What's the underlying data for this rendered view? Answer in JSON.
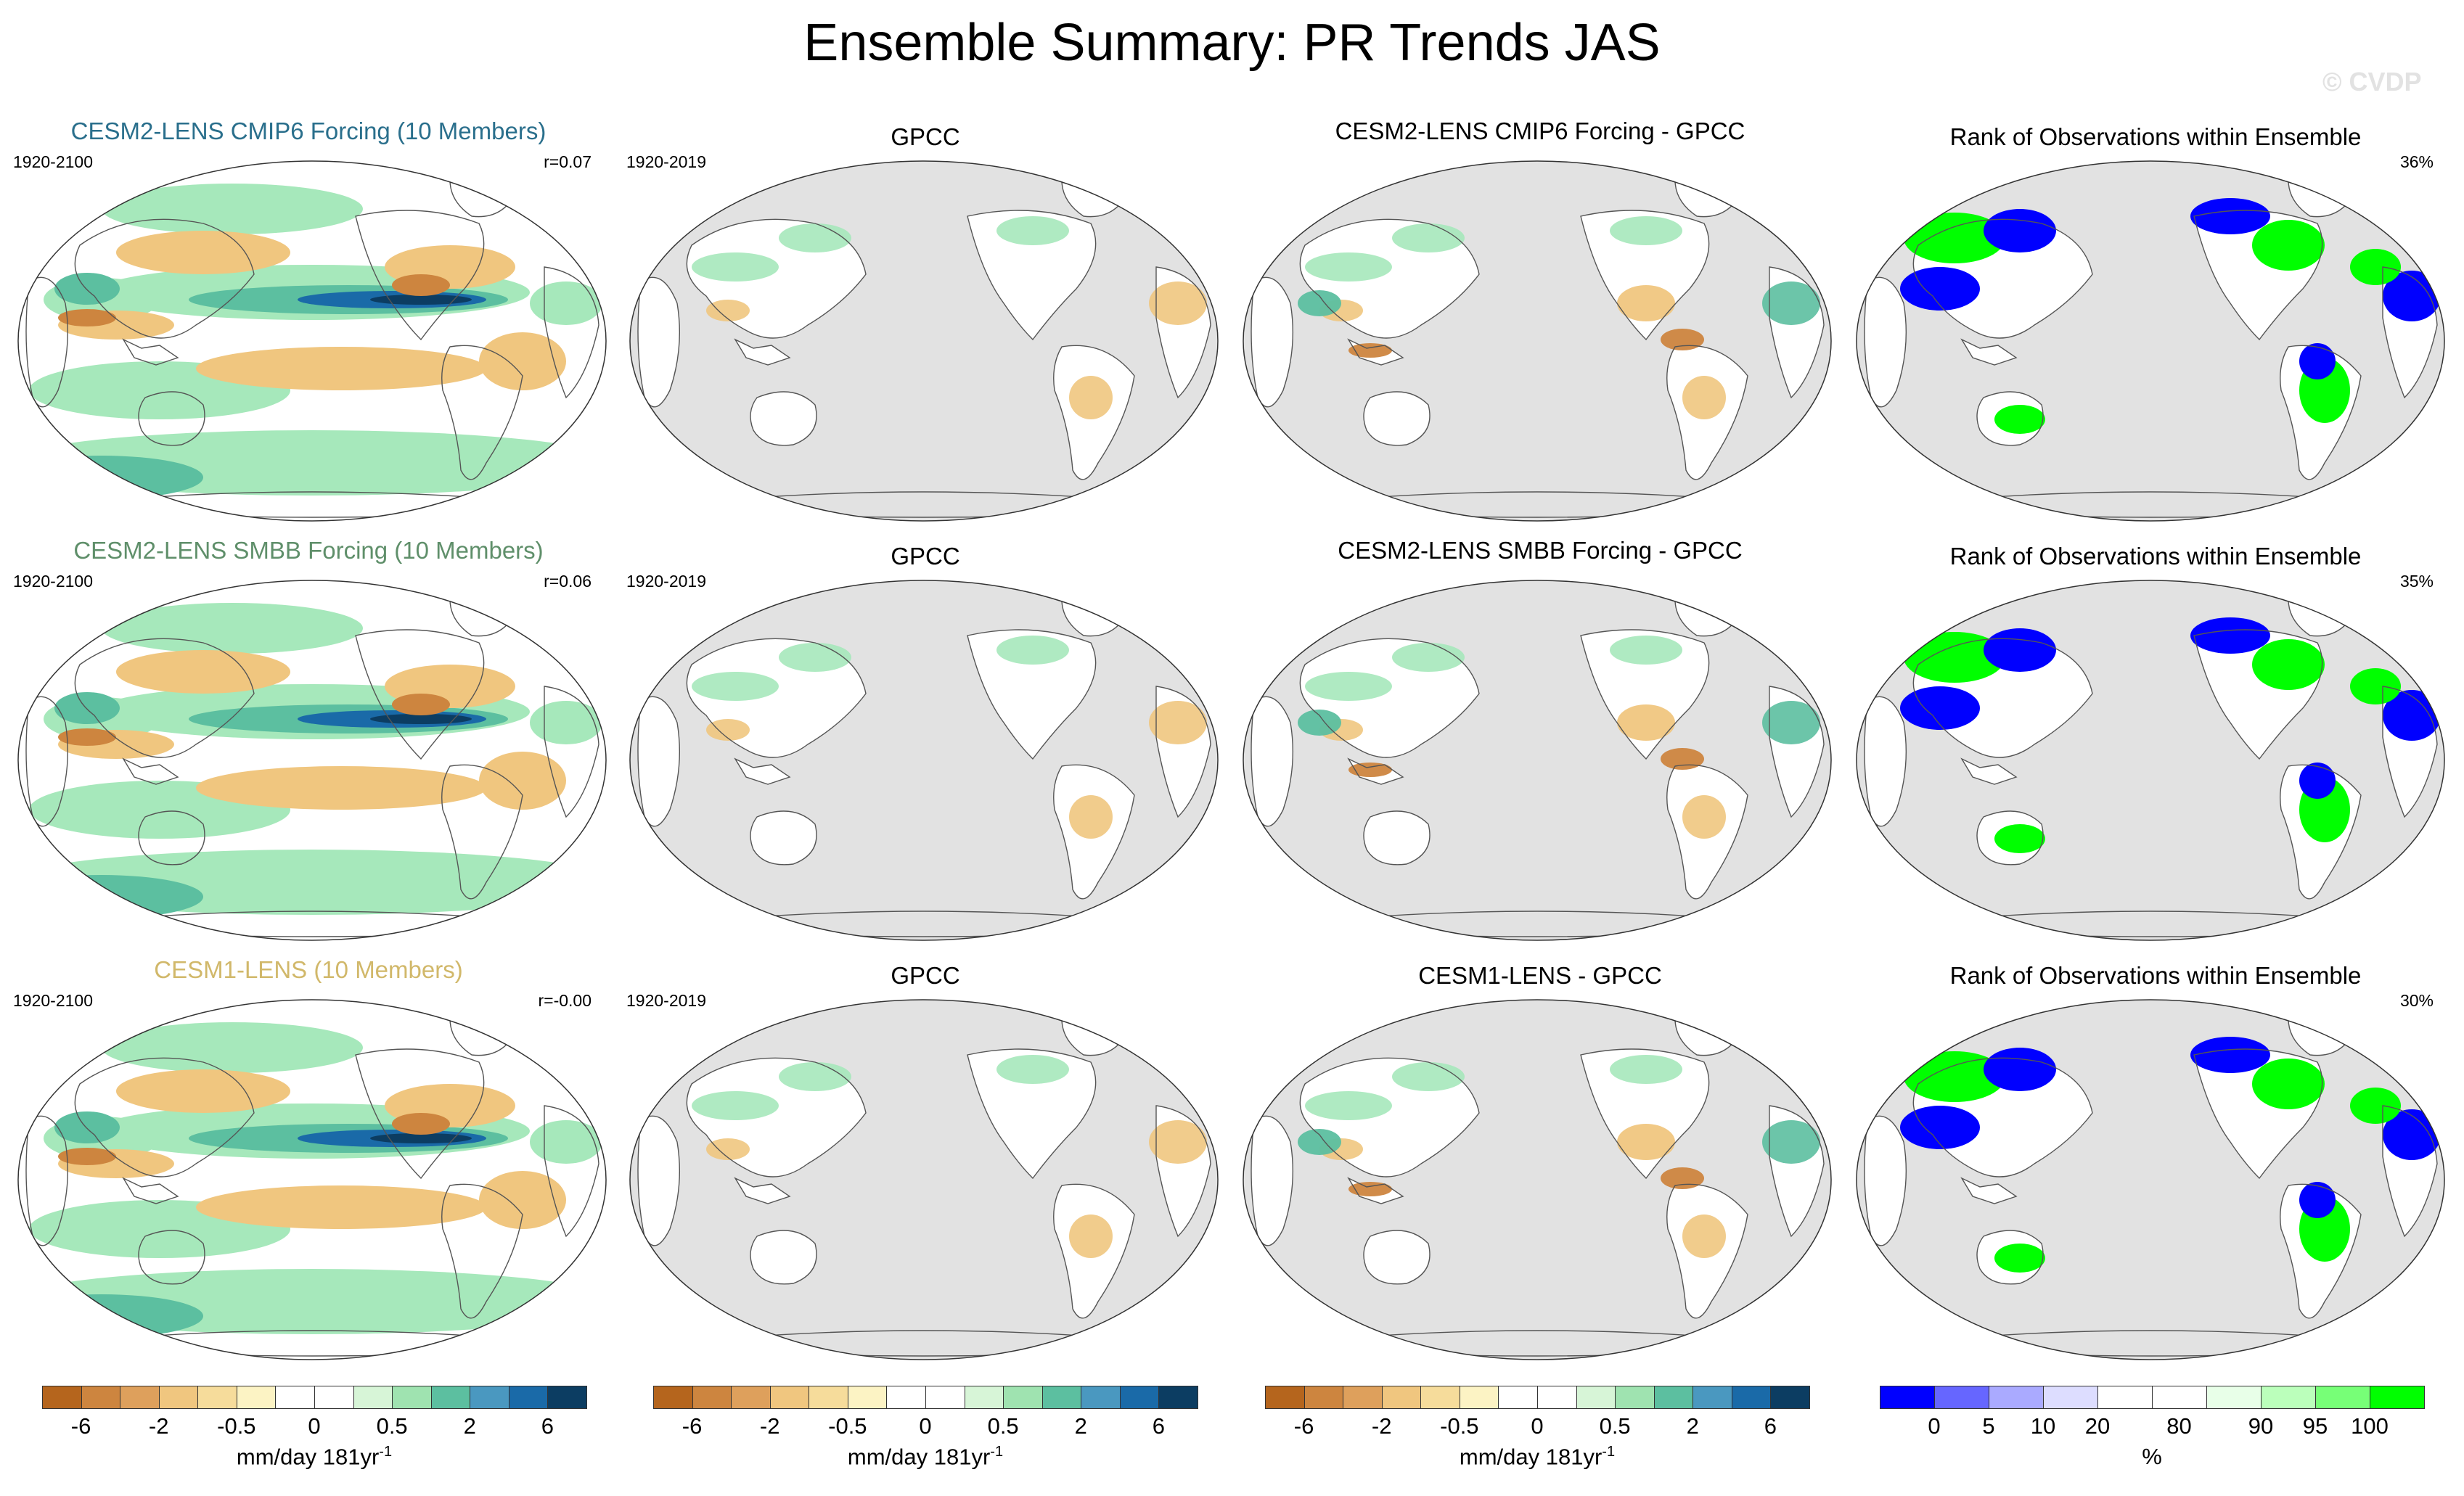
{
  "title": "Ensemble Summary: PR Trends JAS",
  "watermark": "© CVDP",
  "rows": [
    {
      "model": {
        "title": "CESM2-LENS CMIP6 Forcing (10 Members)",
        "color": "#2a6f8c",
        "period": "1920-2100",
        "stat": "r=0.07"
      },
      "obs": {
        "title": "GPCC",
        "period": "1920-2019"
      },
      "diff": {
        "title": "CESM2-LENS CMIP6 Forcing - GPCC"
      },
      "rank": {
        "title": "Rank of Observations within Ensemble",
        "percent": "36%"
      }
    },
    {
      "model": {
        "title": "CESM2-LENS SMBB Forcing (10 Members)",
        "color": "#5f8f6a",
        "period": "1920-2100",
        "stat": "r=0.06"
      },
      "obs": {
        "title": "GPCC",
        "period": "1920-2019"
      },
      "diff": {
        "title": "CESM2-LENS SMBB Forcing - GPCC"
      },
      "rank": {
        "title": "Rank of Observations within Ensemble",
        "percent": "35%"
      }
    },
    {
      "model": {
        "title": "CESM1-LENS (10 Members)",
        "color": "#d1b86a",
        "period": "1920-2100",
        "stat": "r=-0.00"
      },
      "obs": {
        "title": "GPCC",
        "period": "1920-2019"
      },
      "diff": {
        "title": "CESM1-LENS - GPCC"
      },
      "rank": {
        "title": "Rank of Observations within Ensemble",
        "percent": "30%"
      }
    }
  ],
  "trend_colorbar": {
    "colors": [
      "#b5651d",
      "#cd853f",
      "#dea05c",
      "#f0c67f",
      "#f6dc9b",
      "#fcf3c4",
      "#ffffff",
      "#ffffff",
      "#d7f5d7",
      "#9fe3b0",
      "#5cbfa0",
      "#4a98c0",
      "#1a6aa8",
      "#0c3d62"
    ],
    "ticks": [
      "-6",
      "-2",
      "-0.5",
      "0",
      "0.5",
      "2",
      "6"
    ],
    "label": "mm/day 181yr",
    "label_sup": "-1"
  },
  "rank_colorbar": {
    "colors": [
      "#0000ff",
      "#6666ff",
      "#aaaaff",
      "#ddddff",
      "#ffffff",
      "#ffffff",
      "#e8ffe8",
      "#bbffbb",
      "#77ff77",
      "#00ff00"
    ],
    "ticks": [
      "0",
      "5",
      "10",
      "20",
      "80",
      "90",
      "95",
      "100"
    ],
    "label": "%"
  },
  "colors": {
    "land_grey": "#e2e2e2",
    "ocean_fill": "#ffffff",
    "wet_green": "#a6e8bb",
    "wet_teal": "#5cbfa0",
    "wet_blue": "#1a6aa8",
    "wet_dark": "#0c3d62",
    "dry_tan": "#f0c67f",
    "dry_brown": "#cd853f",
    "rank_blue": "#0000ff",
    "rank_green": "#00ff00"
  }
}
